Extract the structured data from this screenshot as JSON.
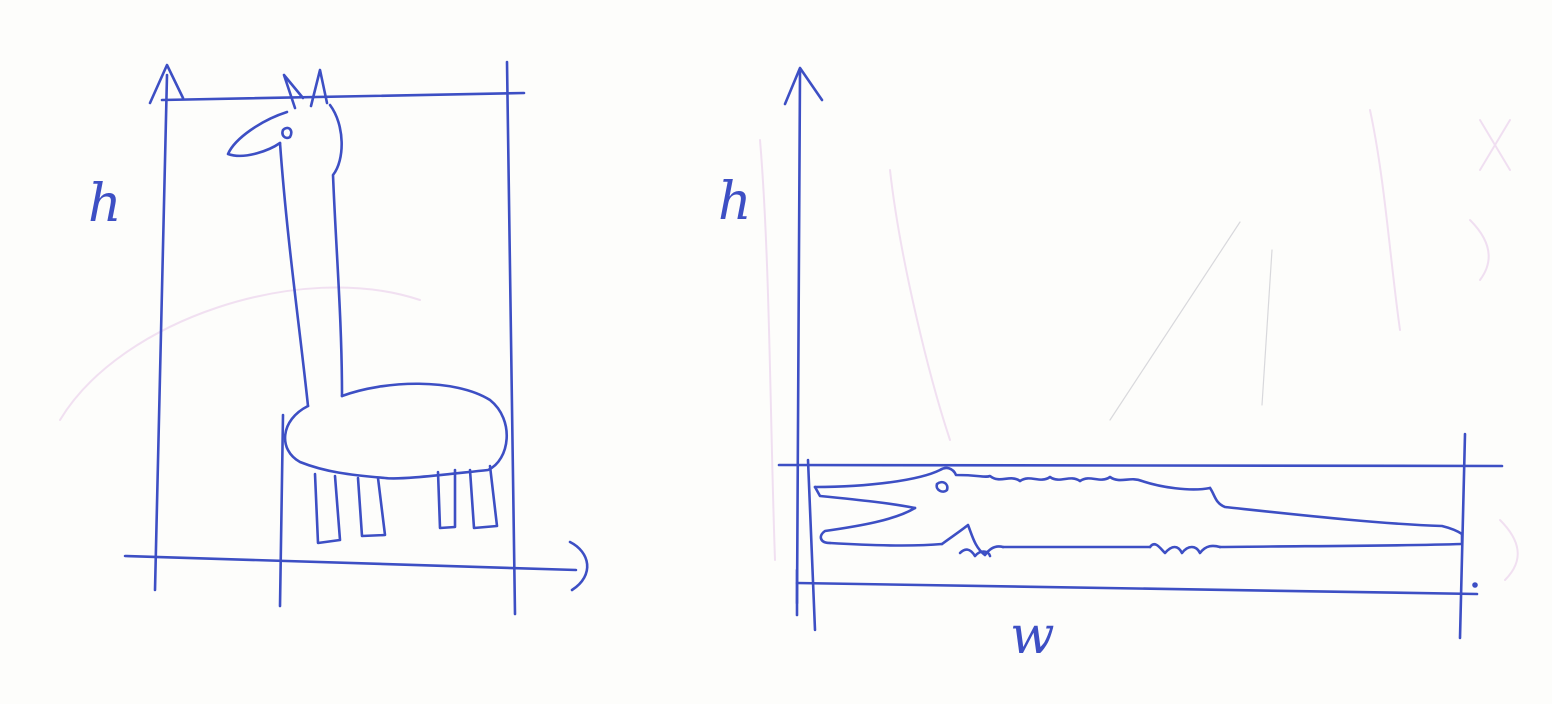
{
  "colors": {
    "ink": "#3d4fc4",
    "ghost_ink": "#e7c8ea",
    "paper": "#fdfdfb"
  },
  "left_panel": {
    "height_label": "h",
    "subject": "giraffe-drawing"
  },
  "right_panel": {
    "height_label": "h",
    "width_label": "w",
    "subject": "crocodile-drawing"
  }
}
